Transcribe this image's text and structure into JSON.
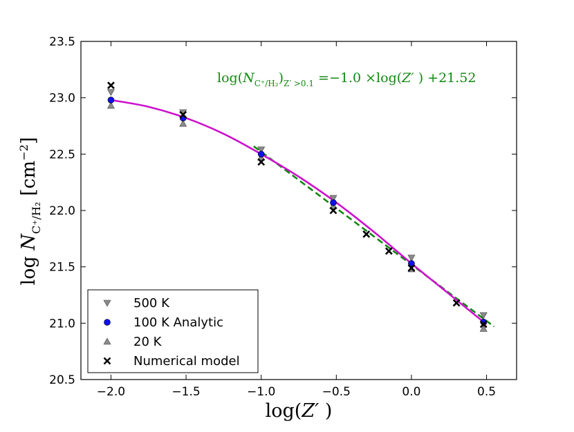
{
  "chart_data": {
    "type": "scatter",
    "title": "",
    "xlabel": "log(Z′ )",
    "ylabel": "log N_{C⁺/H₂} [cm⁻²]",
    "xlim": [
      -2.2,
      0.7
    ],
    "ylim": [
      20.5,
      23.5
    ],
    "x_ticks": [
      -2.0,
      -1.5,
      -1.0,
      -0.5,
      0.0,
      0.5
    ],
    "x_tick_labels": [
      "−2.0",
      "−1.5",
      "−1.0",
      "−0.5",
      "0.0",
      "0.5"
    ],
    "y_ticks": [
      20.5,
      21.0,
      21.5,
      22.0,
      22.5,
      23.0,
      23.5
    ],
    "y_tick_labels": [
      "20.5",
      "21.0",
      "21.5",
      "22.0",
      "22.5",
      "23.0",
      "23.5"
    ],
    "grid": false,
    "legend_position": "lower-left",
    "series": [
      {
        "name": "500 K",
        "marker": "triangle-down",
        "color": "#8a8a8a",
        "x": [
          -2.0,
          -1.52,
          -1.0,
          -0.52,
          0.0,
          0.48
        ],
        "y": [
          23.05,
          22.87,
          22.54,
          22.11,
          21.58,
          21.07
        ]
      },
      {
        "name": "100 K Analytic",
        "marker": "circle",
        "color": "#1010ee",
        "x": [
          -2.0,
          -1.52,
          -1.0,
          -0.52,
          0.0,
          0.48
        ],
        "y": [
          22.98,
          22.82,
          22.5,
          22.07,
          21.53,
          21.01
        ]
      },
      {
        "name": "20 K",
        "marker": "triangle-up",
        "color": "#8a8a8a",
        "x": [
          -2.0,
          -1.52,
          -1.0,
          -0.52,
          0.0,
          0.48
        ],
        "y": [
          22.93,
          22.77,
          22.47,
          22.04,
          21.48,
          20.95
        ]
      },
      {
        "name": "Numerical model",
        "marker": "x",
        "color": "#000000",
        "x": [
          -2.0,
          -1.52,
          -1.0,
          -0.52,
          -0.3,
          -0.15,
          0.0,
          0.3,
          0.48
        ],
        "y": [
          23.11,
          22.85,
          22.43,
          22.0,
          21.79,
          21.64,
          21.49,
          21.18,
          20.99
        ]
      }
    ],
    "fit_curve": {
      "name": "analytic fit",
      "color": "#cc11cc",
      "x": [
        -2.0,
        -1.75,
        -1.5,
        -1.25,
        -1.0,
        -0.75,
        -0.5,
        -0.25,
        0.0,
        0.25,
        0.5
      ],
      "y": [
        22.98,
        22.92,
        22.82,
        22.68,
        22.5,
        22.3,
        22.07,
        21.81,
        21.53,
        21.26,
        20.99
      ]
    },
    "linear_fit": {
      "color": "#118811",
      "slope": -1.0,
      "intercept": 21.52,
      "x_range": [
        -1.05,
        0.55
      ]
    },
    "annotation": {
      "text": "log(N_{C⁺/H₂})_{Z′>0.1} = −1.0 ×log(Z′ ) +21.52",
      "position": "top-right"
    }
  }
}
